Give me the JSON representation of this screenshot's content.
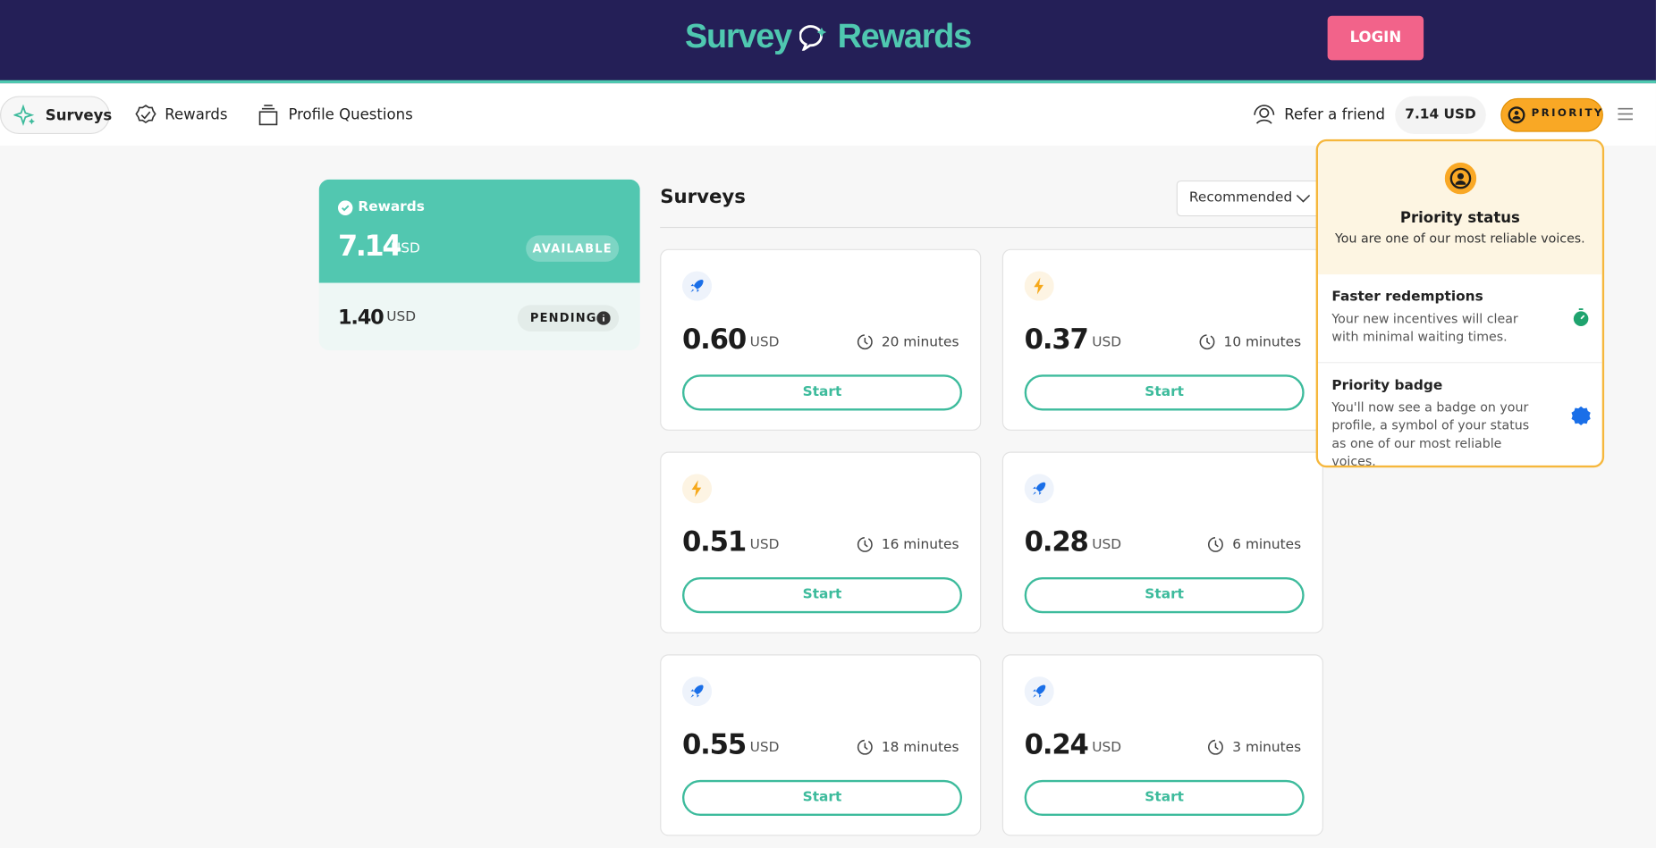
{
  "header": {
    "logo_left": "Survey",
    "logo_right": "Rewards",
    "login": "LOGIN"
  },
  "nav": {
    "items": [
      "Surveys",
      "Rewards",
      "Profile Questions"
    ],
    "refer": "Refer a friend",
    "balance": "7.14 USD",
    "priority": "PRIORITY"
  },
  "wallet": {
    "title": "Rewards",
    "available_amount": "7.14",
    "available_currency": "USD",
    "available_label": "AVAILABLE",
    "pending_amount": "1.40",
    "pending_currency": "USD",
    "pending_label": "PENDING"
  },
  "surveys": {
    "title": "Surveys",
    "sort": "Recommended",
    "cards": [
      {
        "icon": "rocket",
        "amount": "0.60",
        "currency": "USD",
        "duration": "20 minutes",
        "action": "Start"
      },
      {
        "icon": "bolt",
        "amount": "0.37",
        "currency": "USD",
        "duration": "10 minutes",
        "action": "Start"
      },
      {
        "icon": "bolt",
        "amount": "0.51",
        "currency": "USD",
        "duration": "16 minutes",
        "action": "Start"
      },
      {
        "icon": "rocket",
        "amount": "0.28",
        "currency": "USD",
        "duration": "6 minutes",
        "action": "Start"
      },
      {
        "icon": "rocket",
        "amount": "0.55",
        "currency": "USD",
        "duration": "18 minutes",
        "action": "Start"
      },
      {
        "icon": "rocket",
        "amount": "0.24",
        "currency": "USD",
        "duration": "3 minutes",
        "action": "Start"
      }
    ]
  },
  "popup": {
    "title": "Priority status",
    "subtitle": "You are one of our most reliable voices.",
    "items": [
      {
        "title": "Faster redemptions",
        "text": "Your new incentives will clear with minimal waiting times."
      },
      {
        "title": "Priority badge",
        "text": "You'll now see a badge on your profile, a symbol of your status as one of our most reliable voices."
      }
    ]
  }
}
